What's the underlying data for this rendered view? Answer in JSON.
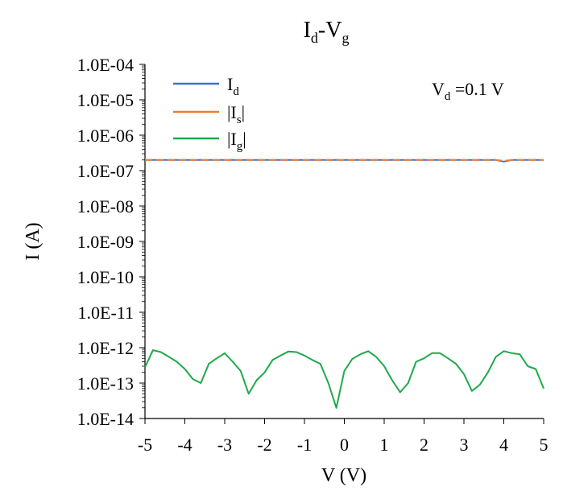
{
  "chart_data": {
    "type": "line",
    "title": {
      "main": "I",
      "sub1": "d",
      "mid": "-V",
      "sub2": "g"
    },
    "xlabel": "V (V)",
    "ylabel": "I (A)",
    "xlim": [
      -5,
      5
    ],
    "ylim_log10": [
      -14,
      -4
    ],
    "y_scale": "log",
    "grid": false,
    "legend_position": "top-left",
    "annotation": {
      "main": "V",
      "sub": "d",
      "rest": " =0.1 V"
    },
    "x_ticks": [
      {
        "v": -5,
        "label": "-5"
      },
      {
        "v": -4,
        "label": "-4"
      },
      {
        "v": -3,
        "label": "-3"
      },
      {
        "v": -2,
        "label": "-2"
      },
      {
        "v": -1,
        "label": "-1"
      },
      {
        "v": 0,
        "label": "0"
      },
      {
        "v": 1,
        "label": "1"
      },
      {
        "v": 2,
        "label": "2"
      },
      {
        "v": 3,
        "label": "3"
      },
      {
        "v": 4,
        "label": "4"
      },
      {
        "v": 5,
        "label": "5"
      }
    ],
    "y_ticks": [
      {
        "v": 0.0001,
        "label": "1.0E-04"
      },
      {
        "v": 1e-05,
        "label": "1.0E-05"
      },
      {
        "v": 1e-06,
        "label": "1.0E-06"
      },
      {
        "v": 1e-07,
        "label": "1.0E-07"
      },
      {
        "v": 1e-08,
        "label": "1.0E-08"
      },
      {
        "v": 1e-09,
        "label": "1.0E-09"
      },
      {
        "v": 1e-10,
        "label": "1.0E-10"
      },
      {
        "v": 1e-11,
        "label": "1.0E-11"
      },
      {
        "v": 1e-12,
        "label": "1.0E-12"
      },
      {
        "v": 1e-13,
        "label": "1.0E-13"
      },
      {
        "v": 1e-14,
        "label": "1.0E-14"
      }
    ],
    "series": [
      {
        "key": "Id",
        "legend": {
          "pre": "I",
          "sub": "d",
          "post": ""
        },
        "color": "#4472C4",
        "x": [
          -5,
          -4,
          -3,
          -2,
          -1,
          0,
          1,
          2,
          3,
          3.8,
          4.0,
          4.2,
          5
        ],
        "y": [
          2e-07,
          2e-07,
          2e-07,
          2e-07,
          2e-07,
          2e-07,
          2e-07,
          2e-07,
          2e-07,
          2e-07,
          1.8e-07,
          2e-07,
          2e-07
        ]
      },
      {
        "key": "Is",
        "legend": {
          "pre": "|I",
          "sub": "s",
          "post": "|"
        },
        "color": "#ED7D31",
        "x": [
          -5,
          -4,
          -3,
          -2,
          -1,
          0,
          1,
          2,
          3,
          3.8,
          4.0,
          4.2,
          5
        ],
        "y": [
          2e-07,
          2e-07,
          2e-07,
          2e-07,
          2e-07,
          2e-07,
          2e-07,
          2e-07,
          2e-07,
          2e-07,
          1.9e-07,
          2e-07,
          2e-07
        ]
      },
      {
        "key": "Ig",
        "legend": {
          "pre": "|I",
          "sub": "g",
          "post": "|"
        },
        "color": "#1DAA4A",
        "x": [
          -5.0,
          -4.8,
          -4.6,
          -4.4,
          -4.2,
          -4.0,
          -3.8,
          -3.6,
          -3.4,
          -3.2,
          -3.0,
          -2.8,
          -2.6,
          -2.4,
          -2.2,
          -2.0,
          -1.8,
          -1.6,
          -1.4,
          -1.2,
          -1.0,
          -0.8,
          -0.6,
          -0.4,
          -0.2,
          0.0,
          0.2,
          0.4,
          0.6,
          0.8,
          1.0,
          1.2,
          1.4,
          1.6,
          1.8,
          2.0,
          2.2,
          2.4,
          2.6,
          2.8,
          3.0,
          3.2,
          3.4,
          3.6,
          3.8,
          4.0,
          4.2,
          4.4,
          4.6,
          4.8,
          5.0
        ],
        "y": [
          2.8e-13,
          8.5e-13,
          7.5e-13,
          5.5e-13,
          4e-13,
          2.5e-13,
          1.3e-13,
          1e-13,
          3.5e-13,
          5e-13,
          7e-13,
          4e-13,
          2.2e-13,
          5e-14,
          1.2e-13,
          2e-13,
          4.5e-13,
          6e-13,
          7.8e-13,
          7.5e-13,
          6e-13,
          4.5e-13,
          3.5e-13,
          1e-13,
          2e-14,
          2.2e-13,
          4.8e-13,
          6.5e-13,
          8e-13,
          5.5e-13,
          3e-13,
          1.2e-13,
          5.5e-14,
          1e-13,
          4e-13,
          5e-13,
          7e-13,
          7e-13,
          5e-13,
          3.5e-13,
          1.8e-13,
          6e-14,
          9e-14,
          2e-13,
          5.5e-13,
          8e-13,
          7e-13,
          6.5e-13,
          3e-13,
          2.5e-13,
          7e-14
        ]
      }
    ]
  }
}
